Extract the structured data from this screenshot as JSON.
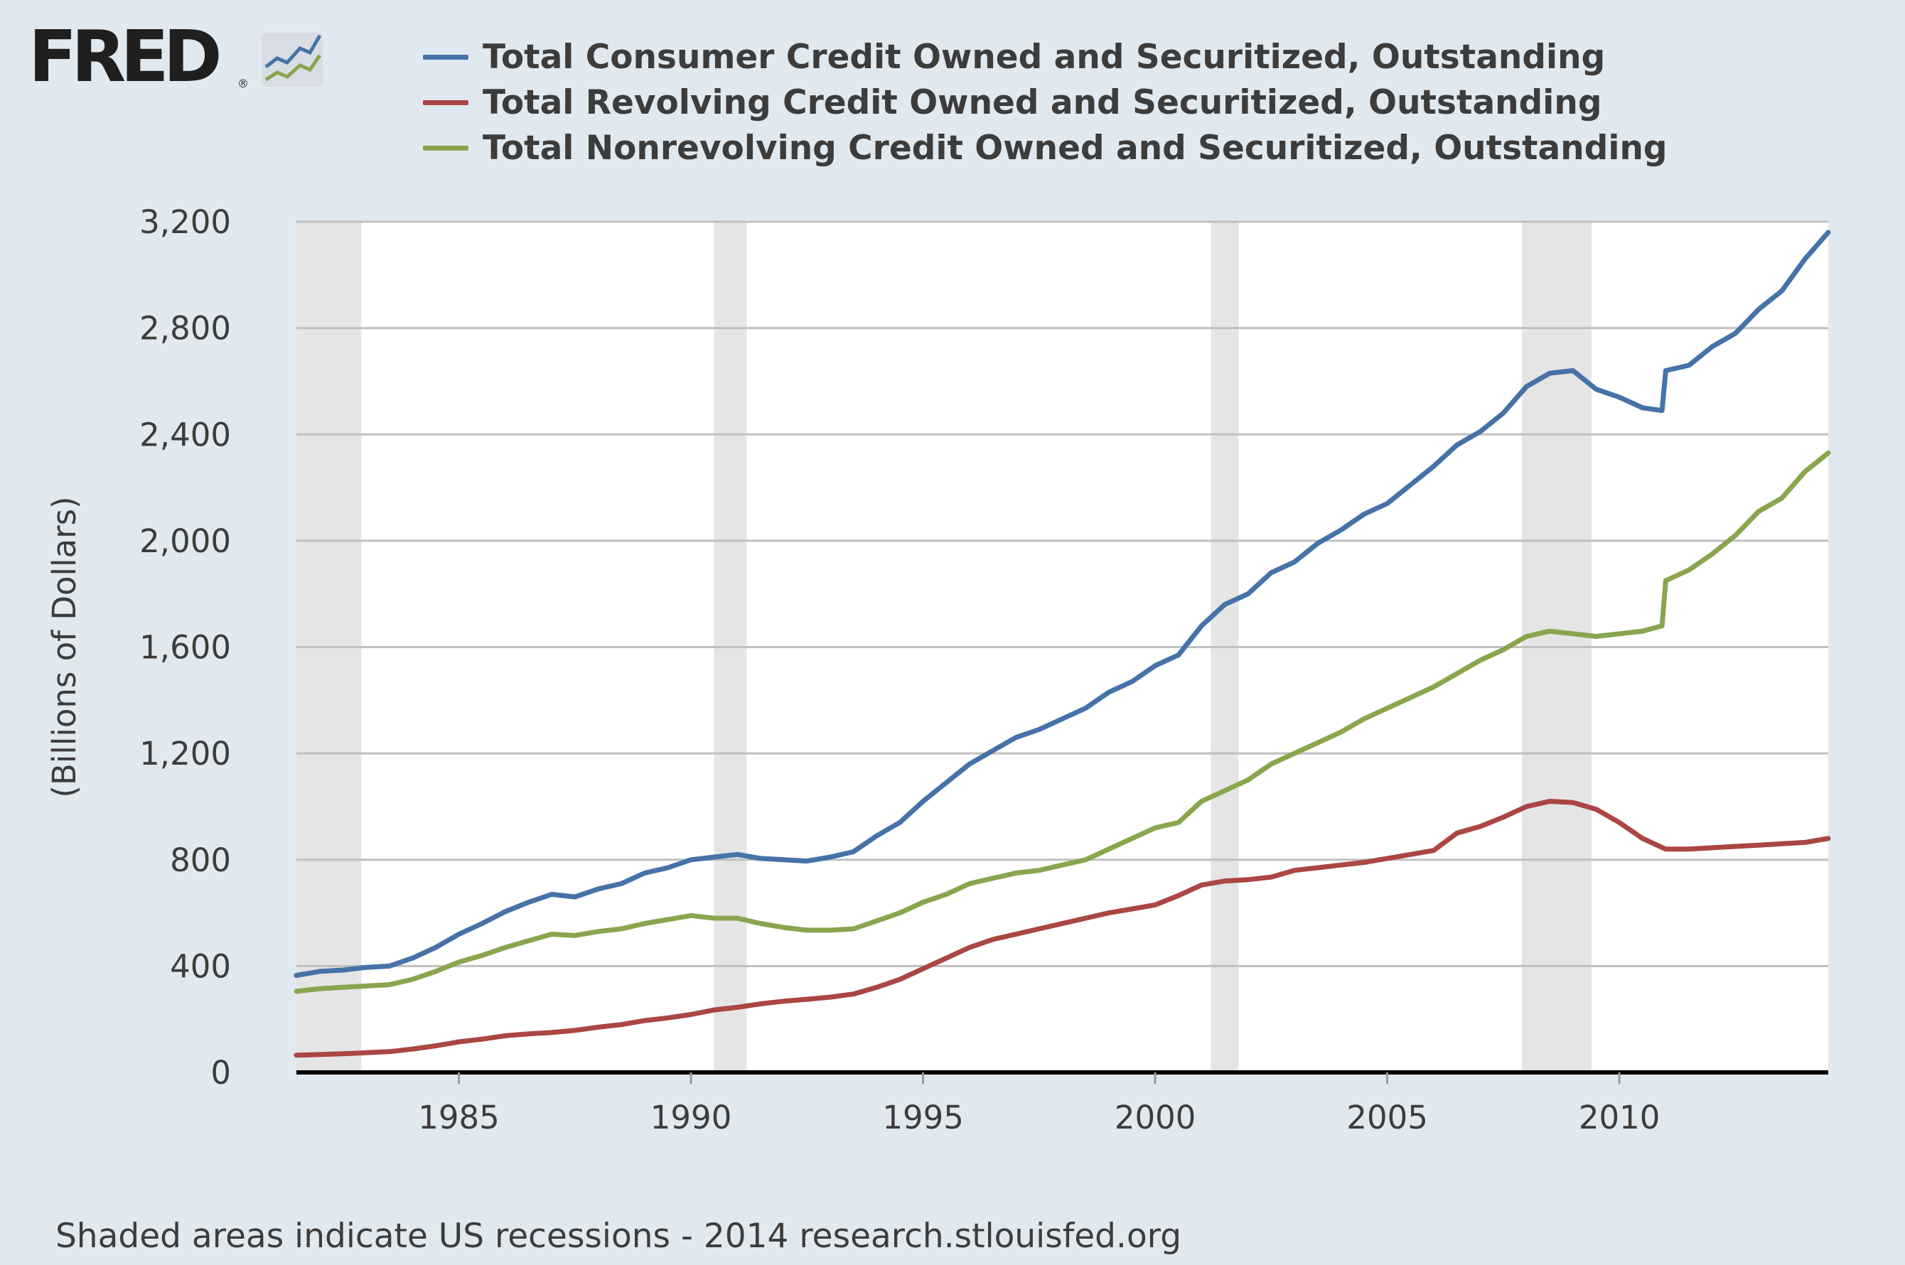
{
  "logo": {
    "text": "FRED",
    "registered": "®"
  },
  "legend": [
    {
      "label": "Total Consumer Credit Owned and Securitized, Outstanding",
      "color": "#4572a7"
    },
    {
      "label": "Total Revolving Credit Owned and Securitized, Outstanding",
      "color": "#aa4643"
    },
    {
      "label": "Total Nonrevolving Credit Owned and Securitized, Outstanding",
      "color": "#89a54e"
    }
  ],
  "footer": "Shaded areas indicate US recessions - 2014 research.stlouisfed.org",
  "chart_data": {
    "type": "line",
    "title": "",
    "xlabel": "",
    "ylabel": "(Billions of Dollars)",
    "xlim": [
      1981.5,
      2014.5
    ],
    "ylim": [
      0,
      3200
    ],
    "yticks": [
      0,
      400,
      800,
      1200,
      1600,
      2000,
      2400,
      2800,
      3200
    ],
    "ytick_labels": [
      "0",
      "400",
      "800",
      "1,200",
      "1,600",
      "2,000",
      "2,400",
      "2,800",
      "3,200"
    ],
    "xticks": [
      1985,
      1990,
      1995,
      2000,
      2005,
      2010
    ],
    "xtick_labels": [
      "1985",
      "1990",
      "1995",
      "2000",
      "2005",
      "2010"
    ],
    "grid": "horizontal",
    "legend_position": "top",
    "recessions": [
      [
        1981.5,
        1982.9
      ],
      [
        1990.5,
        1991.2
      ],
      [
        2001.2,
        2001.8
      ],
      [
        2007.9,
        2009.4
      ]
    ],
    "series": [
      {
        "name": "Total Consumer Credit Owned and Securitized, Outstanding",
        "color": "#4572a7",
        "x": [
          1981.5,
          1982,
          1982.5,
          1983,
          1983.5,
          1984,
          1984.5,
          1985,
          1985.5,
          1986,
          1986.5,
          1987,
          1987.5,
          1988,
          1988.5,
          1989,
          1989.5,
          1990,
          1990.5,
          1991,
          1991.5,
          1992,
          1992.5,
          1993,
          1993.5,
          1994,
          1994.5,
          1995,
          1995.5,
          1996,
          1996.5,
          1997,
          1997.5,
          1998,
          1998.5,
          1999,
          1999.5,
          2000,
          2000.5,
          2001,
          2001.5,
          2002,
          2002.5,
          2003,
          2003.5,
          2004,
          2004.5,
          2005,
          2005.5,
          2006,
          2006.5,
          2007,
          2007.5,
          2008,
          2008.5,
          2009,
          2009.5,
          2010,
          2010.5,
          2010.92,
          2011,
          2011.5,
          2012,
          2012.5,
          2013,
          2013.5,
          2014,
          2014.5
        ],
        "y": [
          365,
          380,
          385,
          395,
          400,
          430,
          470,
          520,
          560,
          605,
          640,
          670,
          660,
          690,
          710,
          750,
          770,
          800,
          810,
          820,
          805,
          800,
          795,
          810,
          830,
          890,
          940,
          1020,
          1090,
          1160,
          1210,
          1260,
          1290,
          1330,
          1370,
          1430,
          1470,
          1530,
          1570,
          1680,
          1760,
          1800,
          1880,
          1920,
          1990,
          2040,
          2100,
          2140,
          2210,
          2280,
          2360,
          2410,
          2480,
          2580,
          2630,
          2640,
          2570,
          2540,
          2500,
          2490,
          2640,
          2660,
          2730,
          2780,
          2870,
          2940,
          3060,
          3160
        ]
      },
      {
        "name": "Total Revolving Credit Owned and Securitized, Outstanding",
        "color": "#aa4643",
        "x": [
          1981.5,
          1982,
          1982.5,
          1983,
          1983.5,
          1984,
          1984.5,
          1985,
          1985.5,
          1986,
          1986.5,
          1987,
          1987.5,
          1988,
          1988.5,
          1989,
          1989.5,
          1990,
          1990.5,
          1991,
          1991.5,
          1992,
          1992.5,
          1993,
          1993.5,
          1994,
          1994.5,
          1995,
          1995.5,
          1996,
          1996.5,
          1997,
          1997.5,
          1998,
          1998.5,
          1999,
          1999.5,
          2000,
          2000.5,
          2001,
          2001.5,
          2002,
          2002.5,
          2003,
          2003.5,
          2004,
          2004.5,
          2005,
          2005.5,
          2006,
          2006.5,
          2007,
          2007.5,
          2008,
          2008.5,
          2009,
          2009.5,
          2010,
          2010.5,
          2011,
          2011.5,
          2012,
          2012.5,
          2013,
          2013.5,
          2014,
          2014.5
        ],
        "y": [
          65,
          67,
          70,
          74,
          78,
          88,
          100,
          115,
          125,
          138,
          145,
          150,
          158,
          170,
          180,
          195,
          205,
          218,
          235,
          245,
          258,
          268,
          275,
          283,
          295,
          320,
          350,
          390,
          430,
          470,
          500,
          520,
          540,
          560,
          580,
          600,
          615,
          630,
          665,
          705,
          720,
          725,
          735,
          760,
          770,
          780,
          790,
          805,
          820,
          835,
          900,
          925,
          960,
          1000,
          1020,
          1015,
          990,
          940,
          880,
          840,
          840,
          845,
          850,
          855,
          860,
          865,
          880
        ]
      },
      {
        "name": "Total Nonrevolving Credit Owned and Securitized, Outstanding",
        "color": "#89a54e",
        "x": [
          1981.5,
          1982,
          1982.5,
          1983,
          1983.5,
          1984,
          1984.5,
          1985,
          1985.5,
          1986,
          1986.5,
          1987,
          1987.5,
          1988,
          1988.5,
          1989,
          1989.5,
          1990,
          1990.5,
          1991,
          1991.5,
          1992,
          1992.5,
          1993,
          1993.5,
          1994,
          1994.5,
          1995,
          1995.5,
          1996,
          1996.5,
          1997,
          1997.5,
          1998,
          1998.5,
          1999,
          1999.5,
          2000,
          2000.5,
          2001,
          2001.5,
          2002,
          2002.5,
          2003,
          2003.5,
          2004,
          2004.5,
          2005,
          2005.5,
          2006,
          2006.5,
          2007,
          2007.5,
          2008,
          2008.5,
          2009,
          2009.5,
          2010,
          2010.5,
          2010.92,
          2011,
          2011.5,
          2012,
          2012.5,
          2013,
          2013.5,
          2014,
          2014.5
        ],
        "y": [
          305,
          315,
          320,
          325,
          330,
          350,
          380,
          415,
          440,
          470,
          495,
          520,
          515,
          530,
          540,
          560,
          575,
          590,
          580,
          580,
          560,
          545,
          535,
          535,
          540,
          570,
          600,
          640,
          670,
          710,
          730,
          750,
          760,
          780,
          800,
          840,
          880,
          920,
          940,
          1020,
          1060,
          1100,
          1160,
          1200,
          1240,
          1280,
          1330,
          1370,
          1410,
          1450,
          1500,
          1550,
          1590,
          1640,
          1660,
          1650,
          1640,
          1650,
          1660,
          1680,
          1850,
          1890,
          1950,
          2020,
          2110,
          2160,
          2260,
          2330
        ]
      }
    ]
  }
}
